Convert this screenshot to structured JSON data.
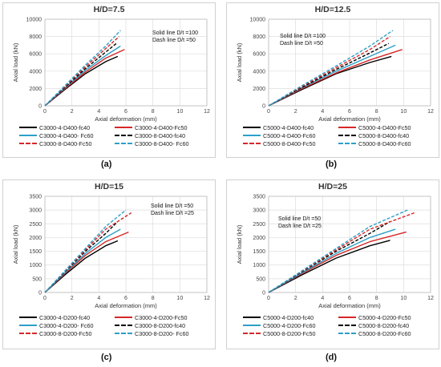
{
  "captions": [
    "(a)",
    "(b)",
    "(c)",
    "(d)"
  ],
  "chart_data": [
    {
      "type": "line",
      "title": "H/D=7.5",
      "xlabel": "Axial deformation (mm)",
      "ylabel": "Axial load (kN)",
      "xlim": [
        0,
        12
      ],
      "ylim": [
        0,
        10000
      ],
      "xticks": [
        0,
        2,
        4,
        6,
        8,
        10,
        12
      ],
      "yticks": [
        0,
        2000,
        4000,
        6000,
        8000,
        10000
      ],
      "notes": [
        "Solid line D/t =100",
        "Dash line D/t =50"
      ],
      "grid": true,
      "legend": "bottom",
      "series": [
        {
          "name": "C3000-4-D400-fc40",
          "color": "#000000",
          "dash": false,
          "x": [
            0,
            1.5,
            3,
            4.5,
            5.4
          ],
          "y": [
            0,
            1900,
            3700,
            5100,
            5700
          ]
        },
        {
          "name": "C3000-4-D400-Fc50",
          "color": "#d62728",
          "dash": false,
          "x": [
            0,
            1.5,
            3,
            4.5,
            5.9
          ],
          "y": [
            0,
            2000,
            3900,
            5500,
            6500
          ]
        },
        {
          "name": "C3000-4-D400- Fc60",
          "color": "#2ca0c8",
          "dash": false,
          "x": [
            0,
            1.5,
            3,
            4.5,
            5.6
          ],
          "y": [
            0,
            2100,
            4100,
            5800,
            6900
          ]
        },
        {
          "name": "C3000-8-D400-fc40",
          "color": "#000000",
          "dash": true,
          "x": [
            0,
            1.5,
            3,
            4.5,
            5.3
          ],
          "y": [
            0,
            2150,
            4300,
            6200,
            7200
          ]
        },
        {
          "name": "C3000-8-D400-Fc50",
          "color": "#d62728",
          "dash": true,
          "x": [
            0,
            1.5,
            3,
            4.5,
            5.5
          ],
          "y": [
            0,
            2250,
            4500,
            6600,
            8000
          ]
        },
        {
          "name": "C3000-8-D400- Fc60",
          "color": "#2ca0c8",
          "dash": true,
          "x": [
            0,
            1.5,
            3,
            4.5,
            5.6
          ],
          "y": [
            0,
            2350,
            4700,
            6900,
            8700
          ]
        }
      ]
    },
    {
      "type": "line",
      "title": "H/D=12.5",
      "xlabel": "Axial deformation (mm)",
      "ylabel": "Axial load (kN)",
      "xlim": [
        0,
        12
      ],
      "ylim": [
        0,
        10000
      ],
      "xticks": [
        0,
        2,
        4,
        6,
        8,
        10,
        12
      ],
      "yticks": [
        0,
        2000,
        4000,
        6000,
        8000,
        10000
      ],
      "notes": [
        "Solid line D/t =100",
        "Dash line D/t =50"
      ],
      "grid": true,
      "legend": "bottom",
      "series": [
        {
          "name": "C5000-4-D400-fc40",
          "color": "#000000",
          "dash": false,
          "x": [
            0,
            2.5,
            5,
            7.5,
            9.1
          ],
          "y": [
            0,
            1900,
            3700,
            5000,
            5700
          ]
        },
        {
          "name": "C5000-4-D400-Fc50",
          "color": "#d62728",
          "dash": false,
          "x": [
            0,
            2.5,
            5,
            7.5,
            9.9
          ],
          "y": [
            0,
            2000,
            3800,
            5300,
            6500
          ]
        },
        {
          "name": "C5000-4-D400-Fc60",
          "color": "#2ca0c8",
          "dash": false,
          "x": [
            0,
            2.5,
            5,
            7.5,
            9.4
          ],
          "y": [
            0,
            2100,
            4000,
            5700,
            7000
          ]
        },
        {
          "name": "C5000-8-D400-fc40",
          "color": "#000000",
          "dash": true,
          "x": [
            0,
            2.5,
            5,
            7.5,
            8.9
          ],
          "y": [
            0,
            2150,
            4200,
            6100,
            7200
          ]
        },
        {
          "name": "C5000-8-D400-Fc50",
          "color": "#d62728",
          "dash": true,
          "x": [
            0,
            2.5,
            5,
            7.5,
            9.0
          ],
          "y": [
            0,
            2250,
            4400,
            6500,
            8000
          ]
        },
        {
          "name": "C5000-8-D400-Fc60",
          "color": "#2ca0c8",
          "dash": true,
          "x": [
            0,
            2.5,
            5,
            7.5,
            9.2
          ],
          "y": [
            0,
            2350,
            4600,
            6900,
            8700
          ]
        }
      ]
    },
    {
      "type": "line",
      "title": "H/D=15",
      "xlabel": "Axial deformation (mm)",
      "ylabel": "Axial load (kN)",
      "xlim": [
        0,
        12
      ],
      "ylim": [
        0,
        3500
      ],
      "xticks": [
        0,
        2,
        4,
        6,
        8,
        10,
        12
      ],
      "yticks": [
        0,
        500,
        1000,
        1500,
        2000,
        2500,
        3000,
        3500
      ],
      "notes": [
        "Solid line D/t =50",
        "Dash line D/t =25"
      ],
      "grid": true,
      "legend": "bottom",
      "series": [
        {
          "name": "C3000-4-D200-fc40",
          "color": "#000000",
          "dash": false,
          "x": [
            0,
            1.5,
            3,
            4.5,
            5.4
          ],
          "y": [
            0,
            650,
            1250,
            1700,
            1880
          ]
        },
        {
          "name": "C3000-4-D200-Fc50",
          "color": "#d62728",
          "dash": false,
          "x": [
            0,
            1.5,
            3,
            4.5,
            6.2
          ],
          "y": [
            0,
            700,
            1350,
            1850,
            2200
          ]
        },
        {
          "name": "C3000-4-D200- Fc60",
          "color": "#2ca0c8",
          "dash": false,
          "x": [
            0,
            1.5,
            3,
            4.5,
            5.6
          ],
          "y": [
            0,
            730,
            1420,
            2000,
            2300
          ]
        },
        {
          "name": "C3000-8-D200-fc40",
          "color": "#000000",
          "dash": true,
          "x": [
            0,
            1.5,
            3,
            4.5,
            5.4
          ],
          "y": [
            0,
            760,
            1500,
            2150,
            2580
          ]
        },
        {
          "name": "C3000-8-D200-Fc50",
          "color": "#d62728",
          "dash": true,
          "x": [
            0,
            1.5,
            3,
            4.5,
            6.4
          ],
          "y": [
            0,
            780,
            1550,
            2300,
            2900
          ]
        },
        {
          "name": "C3000-8-D200- Fc60",
          "color": "#2ca0c8",
          "dash": true,
          "x": [
            0,
            1.5,
            3,
            4.5,
            6.0
          ],
          "y": [
            0,
            800,
            1600,
            2400,
            3000
          ]
        }
      ]
    },
    {
      "type": "line",
      "title": "H/D=25",
      "xlabel": "Axial deformation (mm)",
      "ylabel": "Axial load (kN)",
      "xlim": [
        0,
        12
      ],
      "ylim": [
        0,
        3500
      ],
      "xticks": [
        0,
        2,
        4,
        6,
        8,
        10,
        12
      ],
      "yticks": [
        0,
        500,
        1000,
        1500,
        2000,
        2500,
        3000,
        3500
      ],
      "notes": [
        "Solid line D/t =50",
        "Dash line D/t =25"
      ],
      "grid": true,
      "legend": "bottom",
      "series": [
        {
          "name": "C5000-4-D200-fc40",
          "color": "#000000",
          "dash": false,
          "x": [
            0,
            2.5,
            5,
            7.5,
            9.0
          ],
          "y": [
            0,
            650,
            1250,
            1700,
            1900
          ]
        },
        {
          "name": "C5000-4-D200-Fc50",
          "color": "#d62728",
          "dash": false,
          "x": [
            0,
            2.5,
            5,
            7.5,
            10.2
          ],
          "y": [
            0,
            700,
            1350,
            1850,
            2200
          ]
        },
        {
          "name": "C5000-4-D200-Fc60",
          "color": "#2ca0c8",
          "dash": false,
          "x": [
            0,
            2.5,
            5,
            7.5,
            9.4
          ],
          "y": [
            0,
            730,
            1420,
            2000,
            2300
          ]
        },
        {
          "name": "C5000-8-D200-fc40",
          "color": "#000000",
          "dash": true,
          "x": [
            0,
            2.5,
            5,
            7.5,
            9.0
          ],
          "y": [
            0,
            760,
            1500,
            2150,
            2580
          ]
        },
        {
          "name": "C5000-8-D200-Fc50",
          "color": "#d62728",
          "dash": true,
          "x": [
            0,
            2.5,
            5,
            7.5,
            10.8
          ],
          "y": [
            0,
            780,
            1550,
            2300,
            2900
          ]
        },
        {
          "name": "C5000-8-D200-Fc60",
          "color": "#2ca0c8",
          "dash": true,
          "x": [
            0,
            2.5,
            5,
            7.5,
            10.3
          ],
          "y": [
            0,
            800,
            1600,
            2400,
            3000
          ]
        }
      ]
    }
  ]
}
